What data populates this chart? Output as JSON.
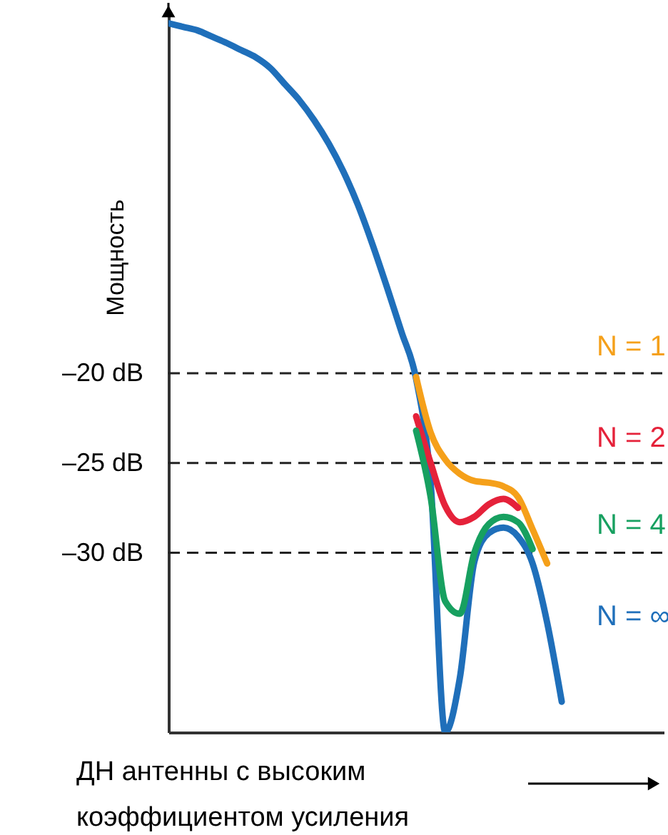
{
  "chart_data": {
    "type": "line",
    "xlabel": "ДН антенны с высоким коэффициентом усиления",
    "ylabel": "Мощность",
    "categories": [
      null,
      null,
      null,
      null,
      null,
      null,
      null,
      null,
      null,
      null,
      null,
      null,
      null,
      null,
      null,
      null,
      null,
      null,
      null,
      null,
      null,
      null,
      null,
      null,
      null,
      null,
      null,
      null,
      null,
      null,
      null,
      null,
      null,
      null,
      null
    ],
    "series": [
      {
        "name": "N = ∞",
        "color": "#1f6fba",
        "values": [
          -0.5,
          -0.7,
          -0.9,
          -1.25,
          -1.6,
          -2.0,
          -2.4,
          -3.0,
          -3.9,
          -4.8,
          -5.9,
          -7.2,
          -8.75,
          -10.6,
          -12.8,
          -15.2,
          -17.7,
          -20.3,
          -26.1,
          -40,
          -37,
          -30.5,
          -28.9,
          -28.6,
          -29.1,
          -30.6,
          -33.9,
          -38.3,
          null,
          null,
          null,
          null,
          null,
          null,
          null
        ]
      },
      {
        "name": "N = 1",
        "color": "#f5a01a",
        "values": [
          null,
          null,
          null,
          null,
          null,
          null,
          null,
          null,
          null,
          null,
          null,
          null,
          null,
          null,
          null,
          null,
          null,
          -20.2,
          -23.3,
          -24.8,
          -25.6,
          -26.0,
          -26.1,
          -26.3,
          -26.9,
          -28.7,
          -30.6,
          null,
          null,
          null,
          null,
          null,
          null,
          null,
          null
        ]
      },
      {
        "name": "N = 2",
        "color": "#e5223a",
        "values": [
          null,
          null,
          null,
          null,
          null,
          null,
          null,
          null,
          null,
          null,
          null,
          null,
          null,
          null,
          null,
          null,
          null,
          -22.4,
          -25,
          -27.4,
          -28.3,
          -28.0,
          -27.3,
          -27.0,
          -27.5,
          null,
          null,
          null,
          null,
          null,
          null,
          null,
          null,
          null,
          null
        ]
      },
      {
        "name": "N = 4",
        "color": "#17a060",
        "values": [
          null,
          null,
          null,
          null,
          null,
          null,
          null,
          null,
          null,
          null,
          null,
          null,
          null,
          null,
          null,
          null,
          null,
          -23.2,
          -26.9,
          -32.7,
          -33.4,
          -30.0,
          -28.4,
          -28.0,
          -28.3,
          -29.8,
          null,
          null,
          null,
          null,
          null,
          null,
          null,
          null,
          null
        ]
      }
    ],
    "ylim": [
      -40,
      0
    ],
    "yticks": [
      {
        "value": -20,
        "label": "–20 dB"
      },
      {
        "value": -25,
        "label": "–25 dB"
      },
      {
        "value": -30,
        "label": "–30 dB"
      }
    ],
    "ref_lines": [
      {
        "axis": "y",
        "value": -20,
        "label": null,
        "line_style": "dashed"
      },
      {
        "axis": "y",
        "value": -25,
        "label": null,
        "line_style": "dashed"
      },
      {
        "axis": "y",
        "value": -30,
        "label": null,
        "line_style": "dashed"
      }
    ],
    "tick_labels": "y",
    "grid": false,
    "legend": false,
    "marker": "none",
    "line_style": "solid"
  }
}
